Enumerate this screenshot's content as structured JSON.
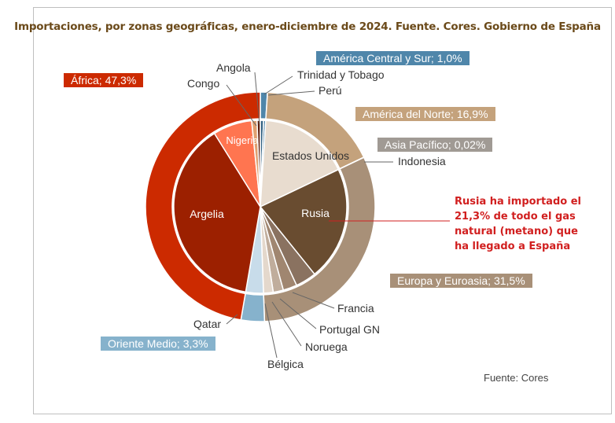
{
  "title": "Importaciones, por zonas geográficas, enero-diciembre de 2024. Fuente. Cores. Gobierno de España",
  "source": "Fuente: Cores",
  "note": [
    "Rusia ha importado el",
    "21,3% de todo el gas",
    "natural (metano) que",
    "ha llegado a España"
  ],
  "colors": {
    "africa": "#cc2a00",
    "argelia": "#9c2000",
    "nigeria": "#ff7550",
    "am_norte": "#c4a27c",
    "eeuu": "#e8dccf",
    "europa": "#a89078",
    "rusia": "#694c30",
    "am_central": "#4f86aa",
    "asia": "#a09a94",
    "oriente": "#86b2cc",
    "qatar": "#c8dcea",
    "note": "#d11f1f"
  },
  "chart_data": {
    "type": "pie",
    "title": "Importaciones, por zonas geográficas, enero-diciembre de 2024. Fuente. Cores. Gobierno de España",
    "outer_series": [
      {
        "name": "América Central y Sur",
        "label": "América Central y Sur; 1,0%",
        "value": 1.0,
        "color": "#4f86aa"
      },
      {
        "name": "América del Norte",
        "label": "América del Norte; 16,9%",
        "value": 16.9,
        "color": "#c4a27c"
      },
      {
        "name": "Asia Pacífico",
        "label": "Asia Pacífico; 0,02%",
        "value": 0.02,
        "color": "#a09a94"
      },
      {
        "name": "Europa y Euroasia",
        "label": "Europa y Euroasia; 31,5%",
        "value": 31.5,
        "color": "#a89078"
      },
      {
        "name": "Oriente Medio",
        "label": "Oriente Medio; 3,3%",
        "value": 3.3,
        "color": "#86b2cc"
      },
      {
        "name": "África",
        "label": "África; 47,3%",
        "value": 47.3,
        "color": "#cc2a00"
      }
    ],
    "inner_series": [
      {
        "name": "Trinidad y Tobago",
        "value": 0.6,
        "color": "#2f5f80"
      },
      {
        "name": "Perú",
        "value": 0.4,
        "color": "#4f86aa"
      },
      {
        "name": "Estados Unidos",
        "value": 16.9,
        "color": "#e8dccf"
      },
      {
        "name": "Indonesia",
        "value": 0.02,
        "color": "#a09a94"
      },
      {
        "name": "Rusia",
        "value": 21.3,
        "color": "#694c30"
      },
      {
        "name": "Francia",
        "value": 3.9,
        "color": "#8a7260"
      },
      {
        "name": "Portugal GN",
        "value": 2.6,
        "color": "#a08670"
      },
      {
        "name": "Noruega",
        "value": 1.9,
        "color": "#c0ad9c"
      },
      {
        "name": "Bélgica",
        "value": 1.8,
        "color": "#e4d8cc"
      },
      {
        "name": "Qatar",
        "value": 3.3,
        "color": "#c8dcea"
      },
      {
        "name": "Argelia",
        "value": 38.4,
        "color": "#9c2000"
      },
      {
        "name": "Nigeria",
        "value": 7.3,
        "color": "#ff7550"
      },
      {
        "name": "Congo",
        "value": 1.0,
        "color": "#e0a070"
      },
      {
        "name": "Angola",
        "value": 0.6,
        "color": "#5a1a0a"
      }
    ],
    "labels": {
      "america_central": "América Central y Sur; 1,0%",
      "america_norte": "América del Norte; 16,9%",
      "asia": "Asia Pacífico; 0,02%",
      "europa": "Europa y Euroasia; 31,5%",
      "oriente": "Oriente Medio; 3,3%",
      "africa": "África; 47,3%",
      "angola": "Angola",
      "congo": "Congo",
      "trinidad": "Trinidad y Tobago",
      "peru": "Perú",
      "indonesia": "Indonesia",
      "francia": "Francia",
      "portugal": "Portugal GN",
      "noruega": "Noruega",
      "belgica": "Bélgica",
      "qatar": "Qatar",
      "estados_unidos": "Estados Unidos",
      "rusia": "Rusia",
      "argelia": "Argelia",
      "nigeria": "Nigeria"
    }
  }
}
